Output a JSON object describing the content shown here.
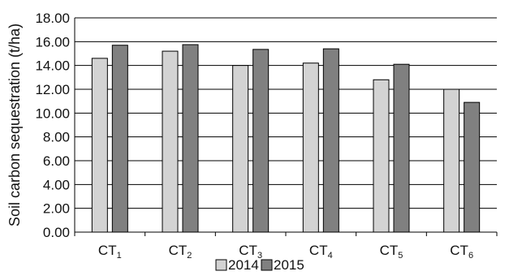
{
  "chart_data": {
    "type": "bar",
    "title": "",
    "xlabel": "",
    "ylabel": "Soil carbon sequestration (t/ha)",
    "ylim": [
      0,
      18
    ],
    "yticks": [
      "0.00",
      "2.00",
      "4.00",
      "6.00",
      "8.00",
      "10.00",
      "12.00",
      "14.00",
      "16.00",
      "18.00"
    ],
    "categories": [
      {
        "base": "CT",
        "sub": "1"
      },
      {
        "base": "CT",
        "sub": "2"
      },
      {
        "base": "CT",
        "sub": "3"
      },
      {
        "base": "CT",
        "sub": "4"
      },
      {
        "base": "CT",
        "sub": "5"
      },
      {
        "base": "CT",
        "sub": "6"
      }
    ],
    "series": [
      {
        "name": "2014",
        "color": "#d3d3d3",
        "values": [
          14.6,
          15.2,
          14.0,
          14.2,
          12.8,
          12.0
        ]
      },
      {
        "name": "2015",
        "color": "#808080",
        "values": [
          15.7,
          15.75,
          15.35,
          15.4,
          14.1,
          10.9
        ]
      }
    ],
    "grid": true,
    "legend": "bottom"
  }
}
